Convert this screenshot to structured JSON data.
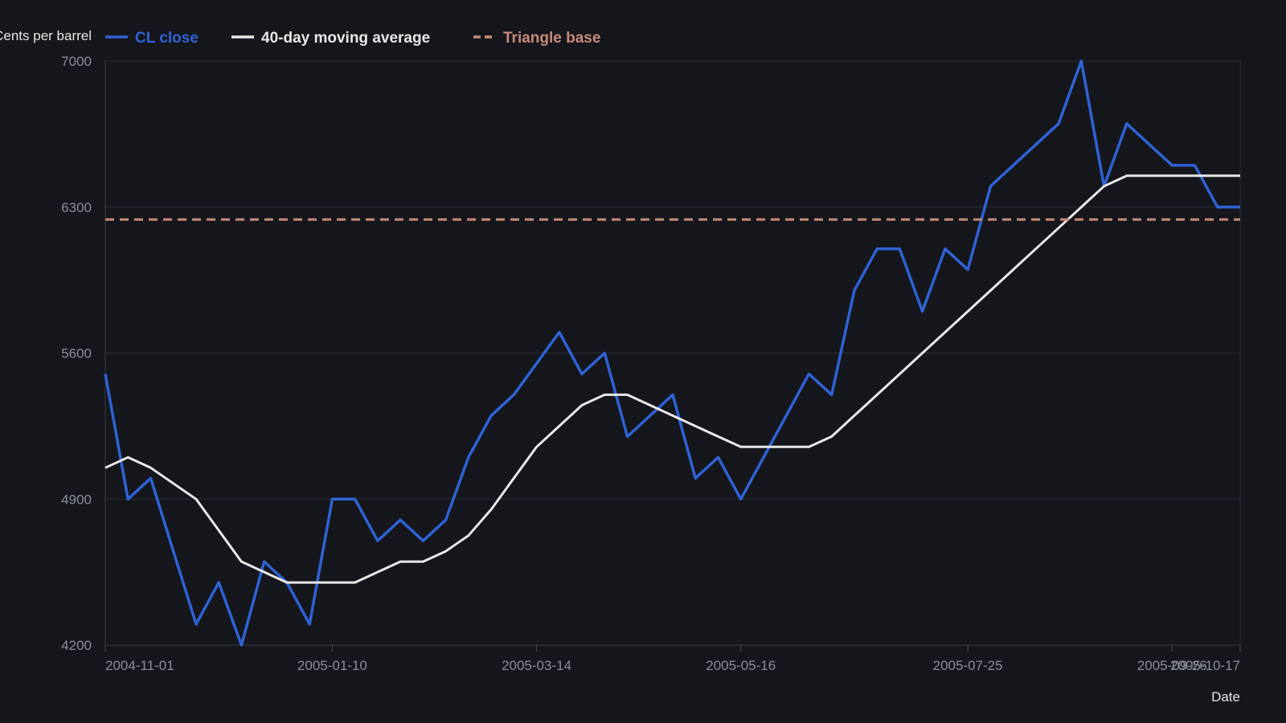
{
  "chart_data": {
    "type": "line",
    "xlabel": "Date",
    "ylabel": "Cents per barrel",
    "ylim": [
      4200,
      7000
    ],
    "xlim": [
      "2004-11-01",
      "2005-10-17"
    ],
    "x_ticks": [
      "2004-11-01",
      "2005-01-10",
      "2005-03-14",
      "2005-05-16",
      "2005-07-25",
      "2005-09-26",
      "2005-10-17"
    ],
    "y_ticks": [
      4200,
      4900,
      5600,
      6300,
      7000
    ],
    "grid": true,
    "legend_position": "top",
    "series": [
      {
        "name": "CL close",
        "color": "#2f62d6",
        "style": "solid",
        "x": [
          "2004-11-01",
          "2004-11-08",
          "2004-11-15",
          "2004-11-22",
          "2004-11-29",
          "2004-12-06",
          "2004-12-13",
          "2004-12-20",
          "2004-12-27",
          "2005-01-03",
          "2005-01-10",
          "2005-01-17",
          "2005-01-24",
          "2005-01-31",
          "2005-02-07",
          "2005-02-14",
          "2005-02-21",
          "2005-02-28",
          "2005-03-07",
          "2005-03-14",
          "2005-03-21",
          "2005-03-28",
          "2005-04-04",
          "2005-04-11",
          "2005-04-18",
          "2005-04-25",
          "2005-05-02",
          "2005-05-09",
          "2005-05-16",
          "2005-05-23",
          "2005-05-30",
          "2005-06-06",
          "2005-06-13",
          "2005-06-20",
          "2005-06-27",
          "2005-07-04",
          "2005-07-11",
          "2005-07-18",
          "2005-07-25",
          "2005-08-01",
          "2005-08-08",
          "2005-08-15",
          "2005-08-22",
          "2005-08-29",
          "2005-09-05",
          "2005-09-12",
          "2005-09-19",
          "2005-09-26",
          "2005-10-03",
          "2005-10-10",
          "2005-10-17"
        ],
        "values": [
          5500,
          4900,
          5000,
          4650,
          4300,
          4500,
          4200,
          4600,
          4500,
          4300,
          4900,
          4900,
          4700,
          4800,
          4700,
          4800,
          5100,
          5300,
          5400,
          5550,
          5700,
          5500,
          5600,
          5200,
          5300,
          5400,
          5000,
          5100,
          4900,
          5100,
          5300,
          5500,
          5400,
          5900,
          6100,
          6100,
          5800,
          6100,
          6000,
          6400,
          6500,
          6600,
          6700,
          7000,
          6400,
          6700,
          6600,
          6500,
          6500,
          6300,
          6300
        ]
      },
      {
        "name": "40-day moving average",
        "color": "#e8e8e8",
        "style": "solid",
        "x": [
          "2004-11-01",
          "2004-11-08",
          "2004-11-15",
          "2004-11-22",
          "2004-11-29",
          "2004-12-06",
          "2004-12-13",
          "2004-12-20",
          "2004-12-27",
          "2005-01-03",
          "2005-01-10",
          "2005-01-17",
          "2005-01-24",
          "2005-01-31",
          "2005-02-07",
          "2005-02-14",
          "2005-02-21",
          "2005-02-28",
          "2005-03-07",
          "2005-03-14",
          "2005-03-21",
          "2005-03-28",
          "2005-04-04",
          "2005-04-11",
          "2005-04-18",
          "2005-04-25",
          "2005-05-02",
          "2005-05-09",
          "2005-05-16",
          "2005-05-23",
          "2005-05-30",
          "2005-06-06",
          "2005-06-13",
          "2005-06-20",
          "2005-06-27",
          "2005-07-04",
          "2005-07-11",
          "2005-07-18",
          "2005-07-25",
          "2005-08-01",
          "2005-08-08",
          "2005-08-15",
          "2005-08-22",
          "2005-08-29",
          "2005-09-05",
          "2005-09-12",
          "2005-09-19",
          "2005-09-26",
          "2005-10-03",
          "2005-10-10",
          "2005-10-17"
        ],
        "values": [
          5050,
          5100,
          5050,
          4975,
          4900,
          4750,
          4600,
          4550,
          4500,
          4500,
          4500,
          4500,
          4550,
          4600,
          4600,
          4650,
          4725,
          4850,
          5000,
          5150,
          5250,
          5350,
          5400,
          5400,
          5350,
          5300,
          5250,
          5200,
          5150,
          5150,
          5150,
          5150,
          5200,
          5300,
          5400,
          5500,
          5600,
          5700,
          5800,
          5900,
          6000,
          6100,
          6200,
          6300,
          6400,
          6450,
          6450,
          6450,
          6450,
          6450,
          6450
        ]
      },
      {
        "name": "Triangle base",
        "color": "#c98a78",
        "style": "dashed",
        "x": [
          "2004-11-01",
          "2005-10-17"
        ],
        "values": [
          6240,
          6240
        ]
      }
    ]
  }
}
